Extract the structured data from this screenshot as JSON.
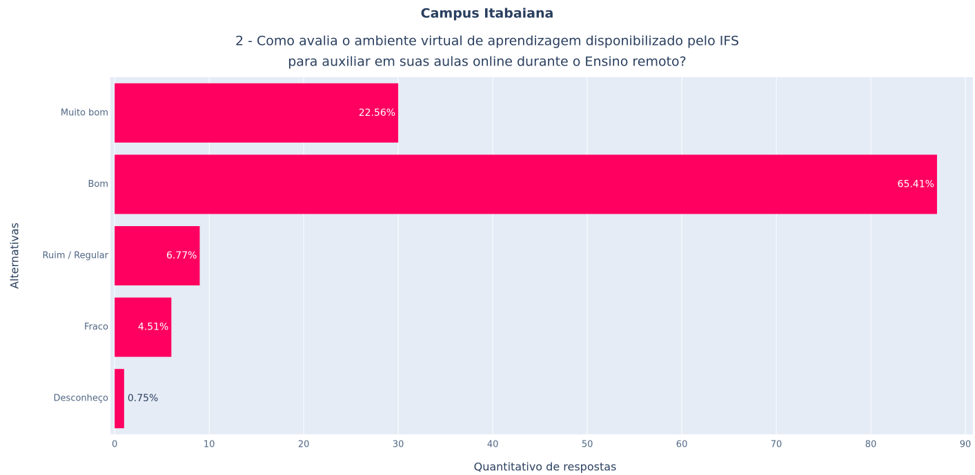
{
  "chart_data": {
    "type": "barh",
    "title": "Campus Itabaiana",
    "subtitle": [
      "2 - Como avalia o ambiente virtual de aprendizagem disponibilizado pelo IFS",
      "para auxiliar em suas aulas online durante o Ensino remoto?"
    ],
    "xlabel": "Quantitativo de respostas",
    "ylabel": "Alternativas",
    "categories": [
      "Muito bom",
      "Bom",
      "Ruim / Regular",
      "Fraco",
      "Desconheço"
    ],
    "values": [
      30,
      87,
      9,
      6,
      1
    ],
    "value_labels": [
      "22.56%",
      "65.41%",
      "6.77%",
      "4.51%",
      "0.75%"
    ],
    "color": "#ff0060",
    "xlim": [
      -0.45,
      90.8
    ],
    "xticks": [
      0,
      10,
      20,
      30,
      40,
      50,
      60,
      70,
      80,
      90
    ],
    "grid": true
  }
}
